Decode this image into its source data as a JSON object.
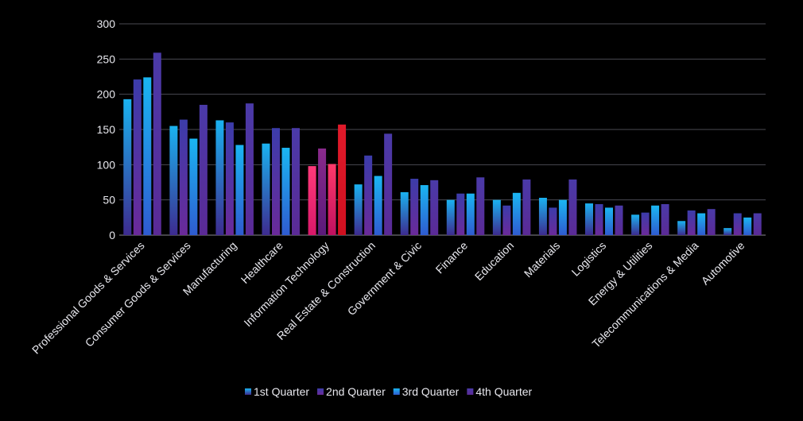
{
  "chart_data": {
    "type": "bar",
    "title": "",
    "xlabel": "",
    "ylabel": "",
    "ylim": [
      0,
      300
    ],
    "yticks": [
      0,
      50,
      100,
      150,
      200,
      250,
      300
    ],
    "grid": true,
    "legend_position": "bottom",
    "categories": [
      "Professional Goods & Services",
      "Consumer Goods & Services",
      "Manufacturing",
      "Healthcare",
      "Information Technology",
      "Real Estate & Construction",
      "Government & Civic",
      "Finance",
      "Education",
      "Materials",
      "Logistics",
      "Energy & Utilities",
      "Telecommunications & Media",
      "Automotive"
    ],
    "highlight_category": "Information Technology",
    "series": [
      {
        "name": "1st Quarter",
        "values": [
          193,
          155,
          163,
          130,
          98,
          72,
          61,
          50,
          50,
          53,
          45,
          29,
          20,
          10
        ]
      },
      {
        "name": "2nd Quarter",
        "values": [
          221,
          164,
          160,
          152,
          123,
          113,
          80,
          59,
          42,
          39,
          44,
          32,
          35,
          31
        ]
      },
      {
        "name": "3rd Quarter",
        "values": [
          224,
          137,
          128,
          124,
          101,
          84,
          71,
          59,
          60,
          50,
          39,
          42,
          31,
          25
        ]
      },
      {
        "name": "4th Quarter",
        "values": [
          259,
          185,
          187,
          152,
          157,
          144,
          78,
          82,
          79,
          79,
          42,
          44,
          37,
          31
        ]
      }
    ],
    "colors": {
      "series_top": [
        "#1ab2f0",
        "#3c3caa",
        "#1ab6f2",
        "#4a3aa8"
      ],
      "series_bottom": [
        "#3d2b8f",
        "#6a2a9a",
        "#2f5bd0",
        "#5b2a96"
      ],
      "highlight_top": [
        "#ff3a7a",
        "#8a2a8c",
        "#ff3a6a",
        "#e01a2a"
      ],
      "highlight_bottom": [
        "#d8186a",
        "#5a1a7a",
        "#c01060",
        "#d01020"
      ]
    }
  }
}
